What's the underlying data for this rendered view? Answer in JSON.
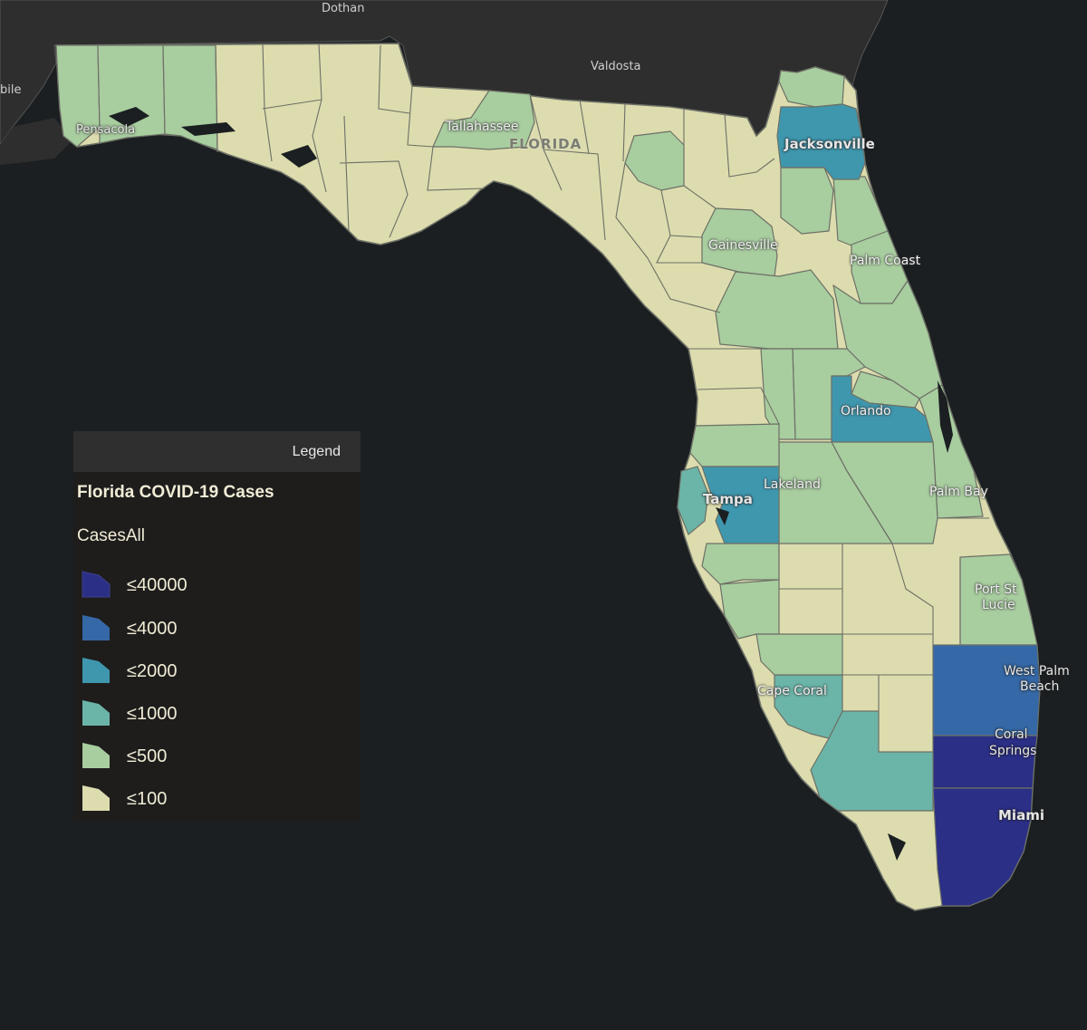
{
  "map": {
    "region": "Florida",
    "ocean_color": "#1b1f21",
    "neighbor_land_color": "#2e2e2e",
    "fill_colors": {
      "le40000": "#2b2f86",
      "le4000": "#3568a6",
      "le2000": "#3f97ae",
      "le1000": "#6bb4a8",
      "le500": "#a8cd9f",
      "le100": "#dcdcae"
    },
    "places": {
      "dothan": "Dothan",
      "valdosta": "Valdosta",
      "mobile_partial": "bile",
      "pensacola": "Pensacola",
      "tallahassee": "Tallahassee",
      "florida": "FLORIDA",
      "jacksonville": "Jacksonville",
      "gainesville": "Gainesville",
      "palm_coast": "Palm Coast",
      "orlando": "Orlando",
      "lakeland": "Lakeland",
      "tampa": "Tampa",
      "palm_bay": "Palm Bay",
      "port_st_lucie_1": "Port St",
      "port_st_lucie_2": "Lucie",
      "west_palm_1": "West Palm",
      "west_palm_2": "Beach",
      "cape_coral": "Cape Coral",
      "coral_springs_1": "Coral",
      "coral_springs_2": "Springs",
      "miami": "Miami"
    }
  },
  "legend": {
    "header": "Legend",
    "layer_title": "Florida COVID-19 Cases",
    "field": "CasesAll",
    "classes": [
      {
        "label": "≤40000",
        "color": "#2b2f86"
      },
      {
        "label": "≤4000",
        "color": "#3568a6"
      },
      {
        "label": "≤2000",
        "color": "#3f97ae"
      },
      {
        "label": "≤1000",
        "color": "#6bb4a8"
      },
      {
        "label": "≤500",
        "color": "#a8cd9f"
      },
      {
        "label": "≤100",
        "color": "#dcdcae"
      }
    ]
  }
}
